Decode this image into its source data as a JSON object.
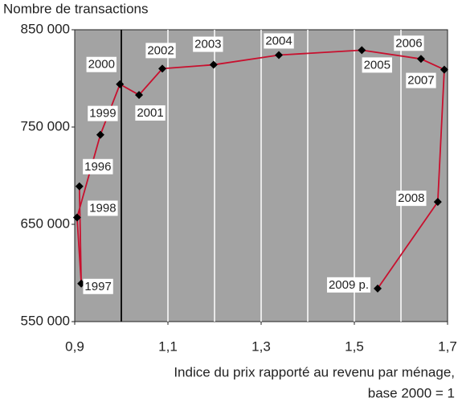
{
  "chart_data": {
    "type": "connected-scatter",
    "y_axis_title": "Nombre de transactions",
    "xlabel": [
      "Indice du prix rapporté au revenu par ménage,",
      "base 2000 = 1"
    ],
    "labels": [
      "1996",
      "1997",
      "1998",
      "1999",
      "2000",
      "2001",
      "2002",
      "2003",
      "2004",
      "2005",
      "2006",
      "2007",
      "2008",
      "2009 p."
    ],
    "x": [
      0.91,
      0.914,
      0.905,
      0.955,
      0.997,
      1.038,
      1.088,
      1.198,
      1.338,
      1.516,
      1.643,
      1.693,
      1.679,
      1.55
    ],
    "values": [
      689000,
      589000,
      657000,
      742000,
      794000,
      783000,
      810000,
      814000,
      824000,
      829000,
      820000,
      809000,
      673000,
      584000
    ],
    "color": "#c8102e",
    "xlim": [
      0.9,
      1.7
    ],
    "ylim": [
      550000,
      850000
    ],
    "xticks": [
      {
        "value": 0.9,
        "label": "0,9"
      },
      {
        "value": 1.1,
        "label": "1,1"
      },
      {
        "value": 1.3,
        "label": "1,3"
      },
      {
        "value": 1.5,
        "label": "1,5"
      },
      {
        "value": 1.7,
        "label": "1,7"
      }
    ],
    "yticks": [
      {
        "value": 550000,
        "label": "550 000"
      },
      {
        "value": 650000,
        "label": "650 000"
      },
      {
        "value": 750000,
        "label": "750 000"
      },
      {
        "value": 850000,
        "label": "850 000"
      }
    ],
    "xgrid": [
      1.0,
      1.1,
      1.2,
      1.3,
      1.4,
      1.5,
      1.6
    ],
    "reference_x": 1.0
  }
}
